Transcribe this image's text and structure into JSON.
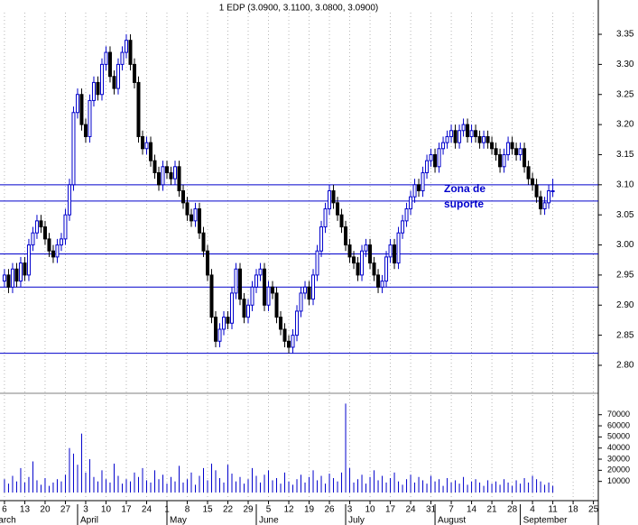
{
  "chart_data": {
    "type": "candlestick",
    "title": "1 EDP (3.0900, 3.1100, 3.0800, 3.0900)",
    "annotation": [
      "Zona de",
      "suporte"
    ],
    "up_color": "#0000cc",
    "down_color": "#000000",
    "level_color": "#0000cc",
    "volume_color": "#0000cc",
    "grid": true,
    "xlim": [
      -1.1,
      146.2
    ],
    "xticks": [
      {
        "value": 0,
        "label": "6"
      },
      {
        "value": 5,
        "label": "13"
      },
      {
        "value": 10,
        "label": "20"
      },
      {
        "value": 15,
        "label": "27"
      },
      {
        "value": 20,
        "label": "3"
      },
      {
        "value": 25,
        "label": "10"
      },
      {
        "value": 30,
        "label": "17"
      },
      {
        "value": 35,
        "label": "24"
      },
      {
        "value": 40,
        "label": "1"
      },
      {
        "value": 45,
        "label": "8"
      },
      {
        "value": 50,
        "label": "15"
      },
      {
        "value": 55,
        "label": "22"
      },
      {
        "value": 60,
        "label": "29"
      },
      {
        "value": 65,
        "label": "5"
      },
      {
        "value": 70,
        "label": "12"
      },
      {
        "value": 75,
        "label": "19"
      },
      {
        "value": 80,
        "label": "26"
      },
      {
        "value": 85,
        "label": "3"
      },
      {
        "value": 90,
        "label": "10"
      },
      {
        "value": 95,
        "label": "17"
      },
      {
        "value": 100,
        "label": "24"
      },
      {
        "value": 105,
        "label": "31"
      },
      {
        "value": 110,
        "label": "7"
      },
      {
        "value": 115,
        "label": "14"
      },
      {
        "value": 120,
        "label": "21"
      },
      {
        "value": 125,
        "label": "28"
      },
      {
        "value": 130,
        "label": "4"
      },
      {
        "value": 135,
        "label": "11"
      },
      {
        "value": 140,
        "label": "18"
      },
      {
        "value": 145,
        "label": "25"
      }
    ],
    "months": [
      {
        "value": -4,
        "label": "March"
      },
      {
        "value": 18,
        "label": "April"
      },
      {
        "value": 40,
        "label": "May"
      },
      {
        "value": 62,
        "label": "June"
      },
      {
        "value": 84,
        "label": "July"
      },
      {
        "value": 106,
        "label": "August"
      },
      {
        "value": 127,
        "label": "September"
      }
    ],
    "ylim": [
      2.755,
      3.407
    ],
    "yticks": [
      {
        "value": 3.35,
        "label": "3.35"
      },
      {
        "value": 3.3,
        "label": "3.30"
      },
      {
        "value": 3.25,
        "label": "3.25"
      },
      {
        "value": 3.2,
        "label": "3.20"
      },
      {
        "value": 3.15,
        "label": "3.15"
      },
      {
        "value": 3.1,
        "label": "3.10"
      },
      {
        "value": 3.05,
        "label": "3.05"
      },
      {
        "value": 3.0,
        "label": "3.00"
      },
      {
        "value": 2.95,
        "label": "2.95"
      },
      {
        "value": 2.9,
        "label": "2.90"
      },
      {
        "value": 2.85,
        "label": "2.85"
      },
      {
        "value": 2.8,
        "label": "2.80"
      }
    ],
    "levels": [
      3.1,
      3.073,
      2.985,
      2.93,
      2.82
    ],
    "vlim": [
      0,
      86000
    ],
    "vticks": [
      70000,
      60000,
      50000,
      40000,
      30000,
      20000,
      10000
    ],
    "open": [
      2.94,
      2.95,
      2.93,
      2.96,
      2.94,
      2.97,
      2.95,
      3.0,
      3.02,
      3.04,
      3.03,
      3.01,
      2.99,
      2.98,
      3.0,
      3.01,
      3.05,
      3.1,
      3.22,
      3.25,
      3.2,
      3.18,
      3.24,
      3.27,
      3.25,
      3.3,
      3.32,
      3.28,
      3.26,
      3.3,
      3.32,
      3.34,
      3.3,
      3.27,
      3.18,
      3.16,
      3.17,
      3.14,
      3.12,
      3.1,
      3.13,
      3.12,
      3.11,
      3.13,
      3.09,
      3.07,
      3.05,
      3.04,
      3.06,
      3.02,
      2.99,
      2.95,
      2.88,
      2.84,
      2.86,
      2.88,
      2.87,
      2.92,
      2.96,
      2.91,
      2.88,
      2.9,
      2.93,
      2.95,
      2.96,
      2.9,
      2.93,
      2.92,
      2.88,
      2.86,
      2.84,
      2.83,
      2.85,
      2.89,
      2.92,
      2.93,
      2.91,
      2.95,
      2.99,
      3.03,
      3.06,
      3.09,
      3.07,
      3.05,
      3.03,
      3.0,
      2.98,
      2.97,
      2.95,
      2.99,
      3.0,
      2.97,
      2.95,
      2.93,
      2.94,
      2.98,
      3.0,
      2.97,
      3.02,
      3.04,
      3.06,
      3.08,
      3.1,
      3.09,
      3.12,
      3.14,
      3.15,
      3.13,
      3.16,
      3.17,
      3.18,
      3.19,
      3.17,
      3.19,
      3.2,
      3.18,
      3.19,
      3.18,
      3.17,
      3.18,
      3.17,
      3.16,
      3.15,
      3.13,
      3.15,
      3.17,
      3.16,
      3.15,
      3.16,
      3.13,
      3.11,
      3.1,
      3.08,
      3.06,
      3.07,
      3.09
    ],
    "high": [
      2.96,
      2.96,
      2.97,
      2.97,
      2.98,
      2.98,
      3.01,
      3.03,
      3.05,
      3.05,
      3.04,
      3.02,
      3.0,
      3.01,
      3.02,
      3.06,
      3.11,
      3.23,
      3.26,
      3.26,
      3.21,
      3.25,
      3.28,
      3.28,
      3.31,
      3.33,
      3.33,
      3.29,
      3.31,
      3.33,
      3.35,
      3.35,
      3.31,
      3.28,
      3.19,
      3.18,
      3.18,
      3.15,
      3.13,
      3.14,
      3.14,
      3.13,
      3.14,
      3.14,
      3.1,
      3.08,
      3.06,
      3.07,
      3.07,
      3.03,
      3.0,
      2.96,
      2.89,
      2.87,
      2.89,
      2.89,
      2.93,
      2.97,
      2.97,
      2.92,
      2.91,
      2.94,
      2.96,
      2.97,
      2.97,
      2.94,
      2.94,
      2.93,
      2.89,
      2.87,
      2.85,
      2.86,
      2.9,
      2.93,
      2.94,
      2.94,
      2.96,
      3.0,
      3.04,
      3.07,
      3.1,
      3.1,
      3.08,
      3.06,
      3.04,
      3.01,
      2.99,
      2.98,
      3.0,
      3.01,
      3.01,
      2.98,
      2.96,
      2.95,
      2.99,
      3.01,
      3.01,
      3.03,
      3.05,
      3.07,
      3.09,
      3.11,
      3.11,
      3.13,
      3.15,
      3.16,
      3.16,
      3.17,
      3.18,
      3.19,
      3.2,
      3.2,
      3.2,
      3.21,
      3.21,
      3.2,
      3.2,
      3.19,
      3.19,
      3.19,
      3.18,
      3.17,
      3.16,
      3.16,
      3.18,
      3.18,
      3.17,
      3.17,
      3.17,
      3.14,
      3.12,
      3.11,
      3.09,
      3.08,
      3.1,
      3.11
    ],
    "low": [
      2.93,
      2.92,
      2.92,
      2.93,
      2.93,
      2.94,
      2.94,
      2.99,
      3.01,
      3.02,
      3.0,
      2.98,
      2.97,
      2.97,
      2.99,
      3.0,
      3.04,
      3.09,
      3.21,
      3.19,
      3.17,
      3.17,
      3.23,
      3.24,
      3.24,
      3.29,
      3.27,
      3.25,
      3.25,
      3.29,
      3.31,
      3.29,
      3.26,
      3.17,
      3.15,
      3.15,
      3.13,
      3.11,
      3.09,
      3.09,
      3.11,
      3.1,
      3.1,
      3.08,
      3.06,
      3.04,
      3.03,
      3.03,
      3.01,
      2.98,
      2.94,
      2.87,
      2.83,
      2.83,
      2.85,
      2.86,
      2.86,
      2.91,
      2.9,
      2.87,
      2.87,
      2.89,
      2.92,
      2.94,
      2.89,
      2.89,
      2.91,
      2.87,
      2.85,
      2.83,
      2.82,
      2.82,
      2.84,
      2.88,
      2.91,
      2.9,
      2.9,
      2.94,
      2.98,
      3.02,
      3.05,
      3.06,
      3.04,
      3.02,
      2.99,
      2.97,
      2.96,
      2.94,
      2.94,
      2.98,
      2.96,
      2.94,
      2.92,
      2.92,
      2.93,
      2.97,
      2.96,
      2.96,
      3.01,
      3.03,
      3.05,
      3.07,
      3.08,
      3.08,
      3.11,
      3.13,
      3.12,
      3.12,
      3.15,
      3.16,
      3.17,
      3.16,
      3.16,
      3.18,
      3.17,
      3.17,
      3.17,
      3.16,
      3.16,
      3.16,
      3.15,
      3.14,
      3.12,
      3.12,
      3.14,
      3.15,
      3.14,
      3.14,
      3.12,
      3.1,
      3.09,
      3.07,
      3.05,
      3.05,
      3.06,
      3.08
    ],
    "close": [
      2.95,
      2.93,
      2.96,
      2.94,
      2.97,
      2.95,
      3.0,
      3.02,
      3.04,
      3.03,
      3.01,
      2.99,
      2.98,
      3.0,
      3.01,
      3.05,
      3.1,
      3.22,
      3.25,
      3.2,
      3.18,
      3.24,
      3.27,
      3.25,
      3.3,
      3.32,
      3.28,
      3.26,
      3.3,
      3.32,
      3.34,
      3.3,
      3.27,
      3.18,
      3.16,
      3.17,
      3.14,
      3.12,
      3.1,
      3.13,
      3.12,
      3.11,
      3.13,
      3.09,
      3.07,
      3.05,
      3.04,
      3.06,
      3.02,
      2.99,
      2.95,
      2.88,
      2.84,
      2.86,
      2.88,
      2.87,
      2.92,
      2.96,
      2.91,
      2.88,
      2.9,
      2.93,
      2.95,
      2.96,
      2.9,
      2.93,
      2.92,
      2.88,
      2.86,
      2.84,
      2.83,
      2.85,
      2.89,
      2.92,
      2.93,
      2.91,
      2.95,
      2.99,
      3.03,
      3.06,
      3.09,
      3.07,
      3.05,
      3.03,
      3.0,
      2.98,
      2.97,
      2.95,
      2.99,
      3.0,
      2.97,
      2.95,
      2.93,
      2.94,
      2.98,
      3.0,
      2.97,
      3.02,
      3.04,
      3.06,
      3.08,
      3.1,
      3.09,
      3.12,
      3.14,
      3.15,
      3.13,
      3.16,
      3.17,
      3.18,
      3.19,
      3.17,
      3.19,
      3.2,
      3.18,
      3.19,
      3.18,
      3.17,
      3.18,
      3.17,
      3.16,
      3.15,
      3.13,
      3.15,
      3.17,
      3.16,
      3.15,
      3.16,
      3.13,
      3.11,
      3.1,
      3.08,
      3.06,
      3.07,
      3.09,
      3.09
    ],
    "volume": [
      12000,
      8000,
      15000,
      10000,
      22000,
      9000,
      14000,
      28000,
      11000,
      7000,
      13000,
      6000,
      9000,
      12000,
      10000,
      16000,
      40000,
      35000,
      25000,
      53000,
      18000,
      30000,
      14000,
      10000,
      20000,
      12000,
      9000,
      26000,
      15000,
      8000,
      12000,
      10000,
      18000,
      14000,
      22000,
      11000,
      9000,
      20000,
      12000,
      16000,
      8000,
      14000,
      10000,
      24000,
      9000,
      12000,
      18000,
      7000,
      15000,
      22000,
      11000,
      26000,
      20000,
      13000,
      9000,
      25000,
      17000,
      10000,
      14000,
      8000,
      12000,
      22000,
      15000,
      9000,
      16000,
      20000,
      11000,
      13000,
      8000,
      18000,
      10000,
      7000,
      12000,
      16000,
      9000,
      14000,
      20000,
      11000,
      15000,
      8000,
      17000,
      13000,
      10000,
      18000,
      80000,
      22000,
      9000,
      12000,
      16000,
      8000,
      14000,
      20000,
      11000,
      15000,
      9000,
      13000,
      18000,
      10000,
      7000,
      12000,
      16000,
      9000,
      14000,
      11000,
      8000,
      15000,
      10000,
      12000,
      6000,
      13000,
      9000,
      11000,
      8000,
      14000,
      7000,
      10000,
      12000,
      9000,
      6000,
      11000,
      8000,
      10000,
      7000,
      12000,
      9000,
      6000,
      11000,
      8000,
      13000,
      9000,
      15000,
      12000,
      10000,
      7000,
      9000,
      6000
    ]
  }
}
